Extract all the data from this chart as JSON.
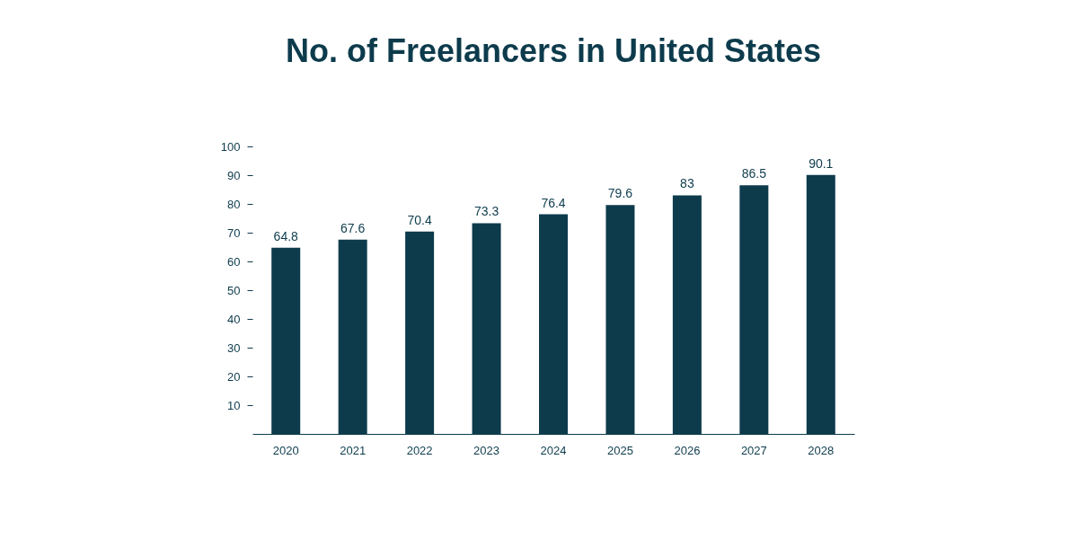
{
  "chart_data": {
    "type": "bar",
    "title": "No. of Freelancers in United States",
    "categories": [
      "2020",
      "2021",
      "2022",
      "2023",
      "2024",
      "2025",
      "2026",
      "2027",
      "2028"
    ],
    "values": [
      64.8,
      67.6,
      70.4,
      73.3,
      76.4,
      79.6,
      83,
      86.5,
      90.1
    ],
    "color": "#0d3b4c",
    "ylim": [
      0,
      100
    ],
    "yticks": [
      10,
      20,
      30,
      40,
      50,
      60,
      70,
      80,
      90,
      100
    ],
    "grid": false,
    "data_labels": true
  }
}
